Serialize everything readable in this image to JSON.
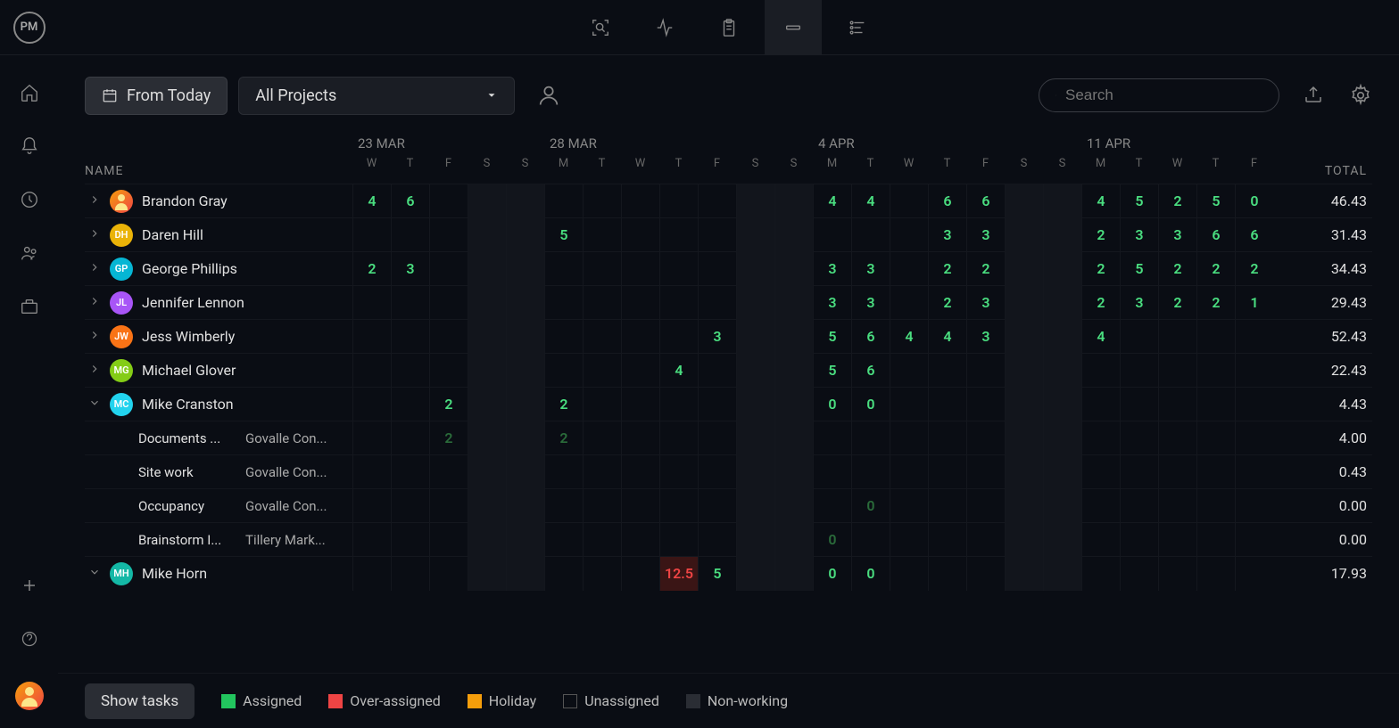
{
  "logo": "PM",
  "toolbar": {
    "fromToday": "From Today",
    "projectSelect": "All Projects",
    "searchPlaceholder": "Search"
  },
  "columns": {
    "name": "NAME",
    "total": "TOTAL"
  },
  "weeks": [
    {
      "label": "23 MAR",
      "days": [
        "W",
        "T",
        "F",
        "S",
        "S"
      ],
      "weekend": [
        3,
        4
      ]
    },
    {
      "label": "28 MAR",
      "days": [
        "M",
        "T",
        "W",
        "T",
        "F",
        "S",
        "S"
      ],
      "weekend": [
        5,
        6
      ]
    },
    {
      "label": "4 APR",
      "days": [
        "M",
        "T",
        "W",
        "T",
        "F",
        "S",
        "S"
      ],
      "weekend": [
        5,
        6
      ]
    },
    {
      "label": "11 APR",
      "days": [
        "M",
        "T",
        "W",
        "T",
        "F"
      ],
      "weekend": []
    }
  ],
  "rows": [
    {
      "type": "person",
      "expanded": false,
      "name": "Brandon Gray",
      "avatar": {
        "initials": "",
        "bg": "linear-gradient(135deg,#f59e0b,#ef4444)",
        "face": true
      },
      "cells": [
        "4",
        "6",
        "",
        "",
        "",
        "",
        "",
        "",
        "",
        "",
        "",
        "",
        "4",
        "4",
        "",
        "6",
        "6",
        "",
        "",
        "4",
        "5",
        "2",
        "5",
        "0"
      ],
      "total": "46.43"
    },
    {
      "type": "person",
      "expanded": false,
      "name": "Daren Hill",
      "avatar": {
        "initials": "DH",
        "bg": "#eab308"
      },
      "cells": [
        "",
        "",
        "",
        "",
        "",
        "5",
        "",
        "",
        "",
        "",
        "",
        "",
        "",
        "",
        "",
        "3",
        "3",
        "",
        "",
        "2",
        "3",
        "3",
        "6",
        "6"
      ],
      "total": "31.43"
    },
    {
      "type": "person",
      "expanded": false,
      "name": "George Phillips",
      "avatar": {
        "initials": "GP",
        "bg": "#06b6d4"
      },
      "cells": [
        "2",
        "3",
        "",
        "",
        "",
        "",
        "",
        "",
        "",
        "",
        "",
        "",
        "3",
        "3",
        "",
        "2",
        "2",
        "",
        "",
        "2",
        "5",
        "2",
        "2",
        "2"
      ],
      "total": "34.43"
    },
    {
      "type": "person",
      "expanded": false,
      "name": "Jennifer Lennon",
      "avatar": {
        "initials": "JL",
        "bg": "#a855f7"
      },
      "cells": [
        "",
        "",
        "",
        "",
        "",
        "",
        "",
        "",
        "",
        "",
        "",
        "",
        "3",
        "3",
        "",
        "2",
        "3",
        "",
        "",
        "2",
        "3",
        "2",
        "2",
        "1"
      ],
      "total": "29.43"
    },
    {
      "type": "person",
      "expanded": false,
      "name": "Jess Wimberly",
      "avatar": {
        "initials": "JW",
        "bg": "#f97316"
      },
      "cells": [
        "",
        "",
        "",
        "",
        "",
        "",
        "",
        "",
        "",
        "3",
        "",
        "",
        "5",
        "6",
        "4",
        "4",
        "3",
        "",
        "",
        "4",
        "",
        "",
        "",
        ""
      ],
      "total": "52.43"
    },
    {
      "type": "person",
      "expanded": false,
      "name": "Michael Glover",
      "avatar": {
        "initials": "MG",
        "bg": "#84cc16"
      },
      "cells": [
        "",
        "",
        "",
        "",
        "",
        "",
        "",
        "",
        "4",
        "",
        "",
        "",
        "5",
        "6",
        "",
        "",
        "",
        "",
        "",
        "",
        "",
        "",
        "",
        ""
      ],
      "total": "22.43"
    },
    {
      "type": "person",
      "expanded": true,
      "name": "Mike Cranston",
      "avatar": {
        "initials": "MC",
        "bg": "#22d3ee"
      },
      "cells": [
        "",
        "",
        "2",
        "",
        "",
        "2",
        "",
        "",
        "",
        "",
        "",
        "",
        "0",
        "0",
        "",
        "",
        "",
        "",
        "",
        "",
        "",
        "",
        "",
        ""
      ],
      "total": "4.43"
    },
    {
      "type": "task",
      "taskName": "Documents ...",
      "project": "Govalle Con...",
      "cells": [
        "",
        "",
        "2",
        "",
        "",
        "2",
        "",
        "",
        "",
        "",
        "",
        "",
        "",
        "",
        "",
        "",
        "",
        "",
        "",
        "",
        "",
        "",
        "",
        ""
      ],
      "cellClass": "darkgreen",
      "total": "4.00"
    },
    {
      "type": "task",
      "taskName": "Site work",
      "project": "Govalle Con...",
      "cells": [
        "",
        "",
        "",
        "",
        "",
        "",
        "",
        "",
        "",
        "",
        "",
        "",
        "",
        "",
        "",
        "",
        "",
        "",
        "",
        "",
        "",
        "",
        "",
        ""
      ],
      "total": "0.43"
    },
    {
      "type": "task",
      "taskName": "Occupancy",
      "project": "Govalle Con...",
      "cells": [
        "",
        "",
        "",
        "",
        "",
        "",
        "",
        "",
        "",
        "",
        "",
        "",
        "",
        "0",
        "",
        "",
        "",
        "",
        "",
        "",
        "",
        "",
        "",
        ""
      ],
      "cellClass": "darkgreen",
      "total": "0.00"
    },
    {
      "type": "task",
      "taskName": "Brainstorm I...",
      "project": "Tillery Mark...",
      "cells": [
        "",
        "",
        "",
        "",
        "",
        "",
        "",
        "",
        "",
        "",
        "",
        "",
        "0",
        "",
        "",
        "",
        "",
        "",
        "",
        "",
        "",
        "",
        "",
        ""
      ],
      "cellClass": "darkgreen",
      "total": "0.00"
    },
    {
      "type": "person",
      "expanded": true,
      "name": "Mike Horn",
      "avatar": {
        "initials": "MH",
        "bg": "#14b8a6"
      },
      "cells": [
        "",
        "",
        "",
        "",
        "",
        "",
        "",
        "",
        "12.5",
        "5",
        "",
        "",
        "0",
        "0",
        "",
        "",
        "",
        "",
        "",
        "",
        "",
        "",
        "",
        ""
      ],
      "overIdx": [
        8
      ],
      "total": "17.93"
    }
  ],
  "footer": {
    "showTasks": "Show tasks",
    "legend": [
      {
        "label": "Assigned",
        "color": "#22c55e"
      },
      {
        "label": "Over-assigned",
        "color": "#ef4444"
      },
      {
        "label": "Holiday",
        "color": "#f59e0b"
      },
      {
        "label": "Unassigned",
        "color": "transparent",
        "border": "#555"
      },
      {
        "label": "Non-working",
        "color": "#2a2d34"
      }
    ]
  },
  "colors": {
    "assigned": "#4ade80",
    "over": "#ef4444",
    "bg": "#0a0d14"
  }
}
